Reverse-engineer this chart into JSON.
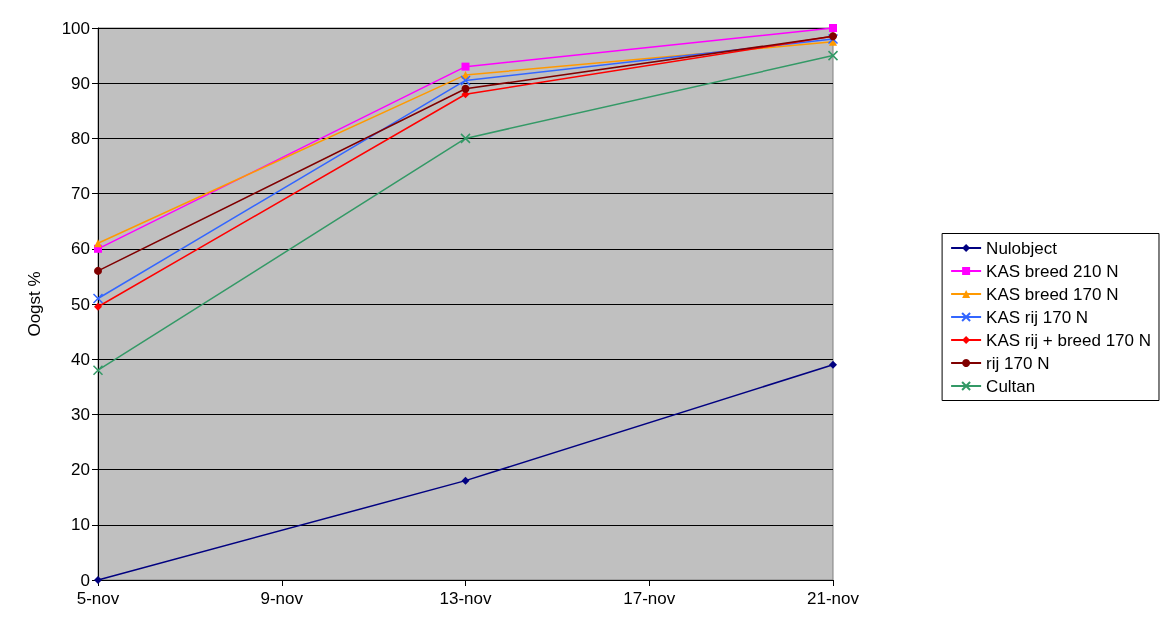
{
  "chart_data": {
    "type": "line",
    "ylabel": "Oogst %",
    "x": [
      "--11-05",
      "--11-13",
      "--11-21"
    ],
    "xlim": [
      "--11-05",
      "--11-21"
    ],
    "xticks": [
      {
        "value": "--11-05",
        "label": "5-nov"
      },
      {
        "value": "--11-09",
        "label": "9-nov"
      },
      {
        "value": "--11-13",
        "label": "13-nov"
      },
      {
        "value": "--11-17",
        "label": "17-nov"
      },
      {
        "value": "--11-21",
        "label": "21-nov"
      }
    ],
    "ylim": [
      0,
      100
    ],
    "yticks": [
      0,
      10,
      20,
      30,
      40,
      50,
      60,
      70,
      80,
      90,
      100
    ],
    "grid": "y",
    "legend": "right",
    "series": [
      {
        "name": "Nulobject",
        "color": "#000080",
        "marker": "diamond",
        "values": [
          0,
          18,
          39
        ]
      },
      {
        "name": "KAS breed 210 N",
        "color": "#ff00ff",
        "marker": "square",
        "values": [
          60,
          93,
          100
        ]
      },
      {
        "name": "KAS breed 170 N",
        "color": "#ff9900",
        "marker": "triangle",
        "values": [
          61,
          91.5,
          97.5
        ]
      },
      {
        "name": "KAS rij 170 N",
        "color": "#3366ff",
        "marker": "cross",
        "values": [
          51,
          90.5,
          98
        ]
      },
      {
        "name": "KAS rij + breed 170 N",
        "color": "#ff0000",
        "marker": "diamond",
        "values": [
          49.5,
          88,
          98.5
        ]
      },
      {
        "name": "rij 170 N",
        "color": "#800000",
        "marker": "circle",
        "values": [
          56,
          89,
          98.5
        ]
      },
      {
        "name": "Cultan",
        "color": "#339966",
        "marker": "cross",
        "values": [
          38,
          80,
          95
        ]
      }
    ]
  }
}
